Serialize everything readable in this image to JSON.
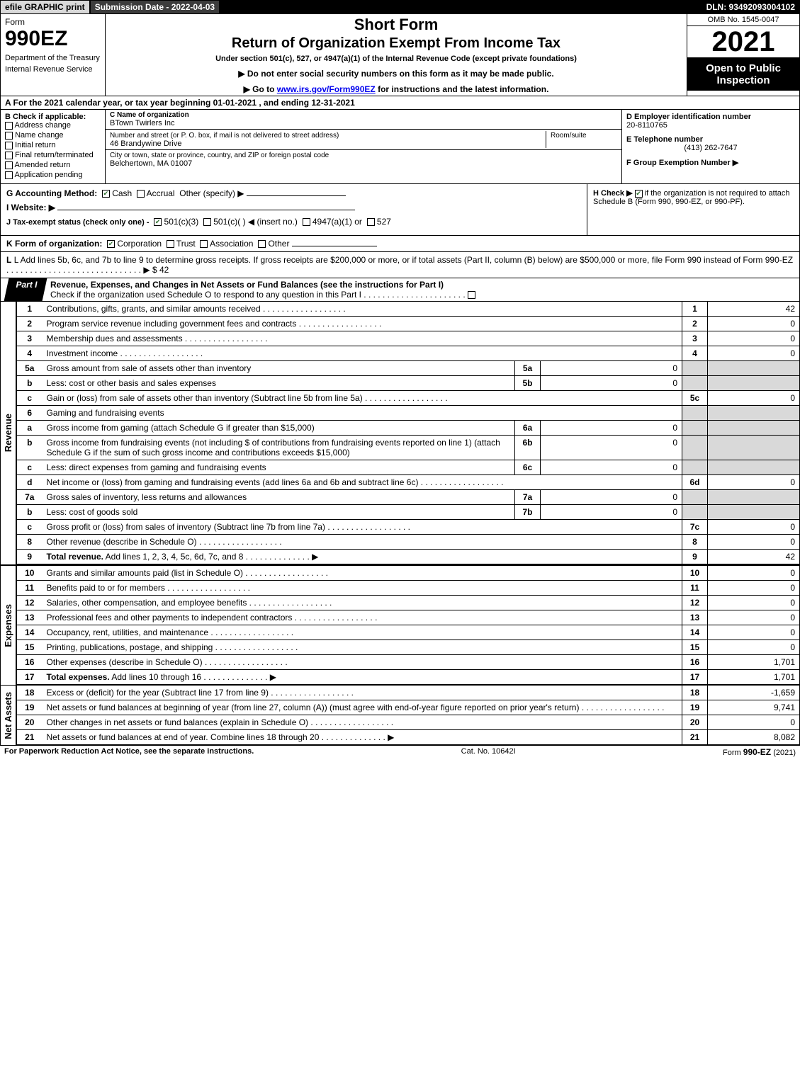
{
  "header_bar": {
    "efile": "efile GRAPHIC print",
    "submission": "Submission Date - 2022-04-03",
    "dln": "DLN: 93492093004102"
  },
  "form_header": {
    "form_word": "Form",
    "form_num": "990EZ",
    "dept1": "Department of the Treasury",
    "dept2": "Internal Revenue Service",
    "short_form": "Short Form",
    "main_title": "Return of Organization Exempt From Income Tax",
    "sub": "Under section 501(c), 527, or 4947(a)(1) of the Internal Revenue Code (except private foundations)",
    "instr1": "▶ Do not enter social security numbers on this form as it may be made public.",
    "instr2_arrow": "▶ Go to ",
    "instr2_link": "www.irs.gov/Form990EZ",
    "instr2_tail": " for instructions and the latest information.",
    "omb": "OMB No. 1545-0047",
    "year": "2021",
    "open": "Open to Public Inspection"
  },
  "section_a": "A  For the 2021 calendar year, or tax year beginning 01-01-2021 , and ending 12-31-2021",
  "section_b": {
    "heading": "B  Check if applicable:",
    "items": [
      "Address change",
      "Name change",
      "Initial return",
      "Final return/terminated",
      "Amended return",
      "Application pending"
    ]
  },
  "section_c": {
    "name_label": "C Name of organization",
    "name": "BTown Twirlers Inc",
    "addr_label": "Number and street (or P. O. box, if mail is not delivered to street address)",
    "addr": "46 Brandywine Drive",
    "room_label": "Room/suite",
    "city_label": "City or town, state or province, country, and ZIP or foreign postal code",
    "city": "Belchertown, MA  01007"
  },
  "section_d": {
    "label": "D Employer identification number",
    "ein": "20-8110765",
    "e_label": "E Telephone number",
    "phone": "(413) 262-7647",
    "f_label": "F Group Exemption Number  ▶"
  },
  "gih": {
    "g": "G Accounting Method:",
    "g_opts": [
      "Cash",
      "Accrual",
      "Other (specify) ▶"
    ],
    "g_checked": 0,
    "i": "I Website: ▶",
    "j": "J Tax-exempt status (check only one) -",
    "j_opts": [
      "501(c)(3)",
      "501(c)(  ) ◀ (insert no.)",
      "4947(a)(1) or",
      "527"
    ],
    "h": "H  Check ▶",
    "h_tail": "if the organization is not required to attach Schedule B (Form 990, 990-EZ, or 990-PF)."
  },
  "k": "K Form of organization:",
  "k_opts": [
    "Corporation",
    "Trust",
    "Association",
    "Other"
  ],
  "k_checked": 0,
  "l": "L Add lines 5b, 6c, and 7b to line 9 to determine gross receipts. If gross receipts are $200,000 or more, or if total assets (Part II, column (B) below) are $500,000 or more, file Form 990 instead of Form 990-EZ",
  "l_val": "▶ $ 42",
  "part1": {
    "tab": "Part I",
    "title": "Revenue, Expenses, and Changes in Net Assets or Fund Balances (see the instructions for Part I)",
    "check": "Check if the organization used Schedule O to respond to any question in this Part I"
  },
  "revenue": {
    "side": "Revenue",
    "rows": [
      {
        "n": "1",
        "d": "Contributions, gifts, grants, and similar amounts received",
        "rn": "1",
        "rv": "42"
      },
      {
        "n": "2",
        "d": "Program service revenue including government fees and contracts",
        "rn": "2",
        "rv": "0"
      },
      {
        "n": "3",
        "d": "Membership dues and assessments",
        "rn": "3",
        "rv": "0"
      },
      {
        "n": "4",
        "d": "Investment income",
        "rn": "4",
        "rv": "0"
      },
      {
        "n": "5a",
        "d": "Gross amount from sale of assets other than inventory",
        "bl": "5a",
        "bv": "0",
        "shade": true
      },
      {
        "n": "b",
        "d": "Less: cost or other basis and sales expenses",
        "bl": "5b",
        "bv": "0",
        "shade": true
      },
      {
        "n": "c",
        "d": "Gain or (loss) from sale of assets other than inventory (Subtract line 5b from line 5a)",
        "rn": "5c",
        "rv": "0"
      },
      {
        "n": "6",
        "d": "Gaming and fundraising events",
        "shade": true,
        "noright": true
      },
      {
        "n": "a",
        "d": "Gross income from gaming (attach Schedule G if greater than $15,000)",
        "bl": "6a",
        "bv": "0",
        "shade": true
      },
      {
        "n": "b",
        "d": "Gross income from fundraising events (not including $                      of contributions from fundraising events reported on line 1) (attach Schedule G if the sum of such gross income and contributions exceeds $15,000)",
        "bl": "6b",
        "bv": "0",
        "shade": true
      },
      {
        "n": "c",
        "d": "Less: direct expenses from gaming and fundraising events",
        "bl": "6c",
        "bv": "0",
        "shade": true
      },
      {
        "n": "d",
        "d": "Net income or (loss) from gaming and fundraising events (add lines 6a and 6b and subtract line 6c)",
        "rn": "6d",
        "rv": "0"
      },
      {
        "n": "7a",
        "d": "Gross sales of inventory, less returns and allowances",
        "bl": "7a",
        "bv": "0",
        "shade": true
      },
      {
        "n": "b",
        "d": "Less: cost of goods sold",
        "bl": "7b",
        "bv": "0",
        "shade": true
      },
      {
        "n": "c",
        "d": "Gross profit or (loss) from sales of inventory (Subtract line 7b from line 7a)",
        "rn": "7c",
        "rv": "0"
      },
      {
        "n": "8",
        "d": "Other revenue (describe in Schedule O)",
        "rn": "8",
        "rv": "0"
      },
      {
        "n": "9",
        "d": "Total revenue. Add lines 1, 2, 3, 4, 5c, 6d, 7c, and 8",
        "rn": "9",
        "rv": "42",
        "bold": true,
        "arrow": true
      }
    ]
  },
  "expenses": {
    "side": "Expenses",
    "rows": [
      {
        "n": "10",
        "d": "Grants and similar amounts paid (list in Schedule O)",
        "rn": "10",
        "rv": "0"
      },
      {
        "n": "11",
        "d": "Benefits paid to or for members",
        "rn": "11",
        "rv": "0"
      },
      {
        "n": "12",
        "d": "Salaries, other compensation, and employee benefits",
        "rn": "12",
        "rv": "0"
      },
      {
        "n": "13",
        "d": "Professional fees and other payments to independent contractors",
        "rn": "13",
        "rv": "0"
      },
      {
        "n": "14",
        "d": "Occupancy, rent, utilities, and maintenance",
        "rn": "14",
        "rv": "0"
      },
      {
        "n": "15",
        "d": "Printing, publications, postage, and shipping",
        "rn": "15",
        "rv": "0"
      },
      {
        "n": "16",
        "d": "Other expenses (describe in Schedule O)",
        "rn": "16",
        "rv": "1,701"
      },
      {
        "n": "17",
        "d": "Total expenses. Add lines 10 through 16",
        "rn": "17",
        "rv": "1,701",
        "bold": true,
        "arrow": true
      }
    ]
  },
  "netassets": {
    "side": "Net Assets",
    "rows": [
      {
        "n": "18",
        "d": "Excess or (deficit) for the year (Subtract line 17 from line 9)",
        "rn": "18",
        "rv": "-1,659"
      },
      {
        "n": "19",
        "d": "Net assets or fund balances at beginning of year (from line 27, column (A)) (must agree with end-of-year figure reported on prior year's return)",
        "rn": "19",
        "rv": "9,741"
      },
      {
        "n": "20",
        "d": "Other changes in net assets or fund balances (explain in Schedule O)",
        "rn": "20",
        "rv": "0"
      },
      {
        "n": "21",
        "d": "Net assets or fund balances at end of year. Combine lines 18 through 20",
        "rn": "21",
        "rv": "8,082",
        "arrow": true
      }
    ]
  },
  "footer": {
    "left": "For Paperwork Reduction Act Notice, see the separate instructions.",
    "mid": "Cat. No. 10642I",
    "right_pre": "Form ",
    "right_bold": "990-EZ",
    "right_post": " (2021)"
  }
}
